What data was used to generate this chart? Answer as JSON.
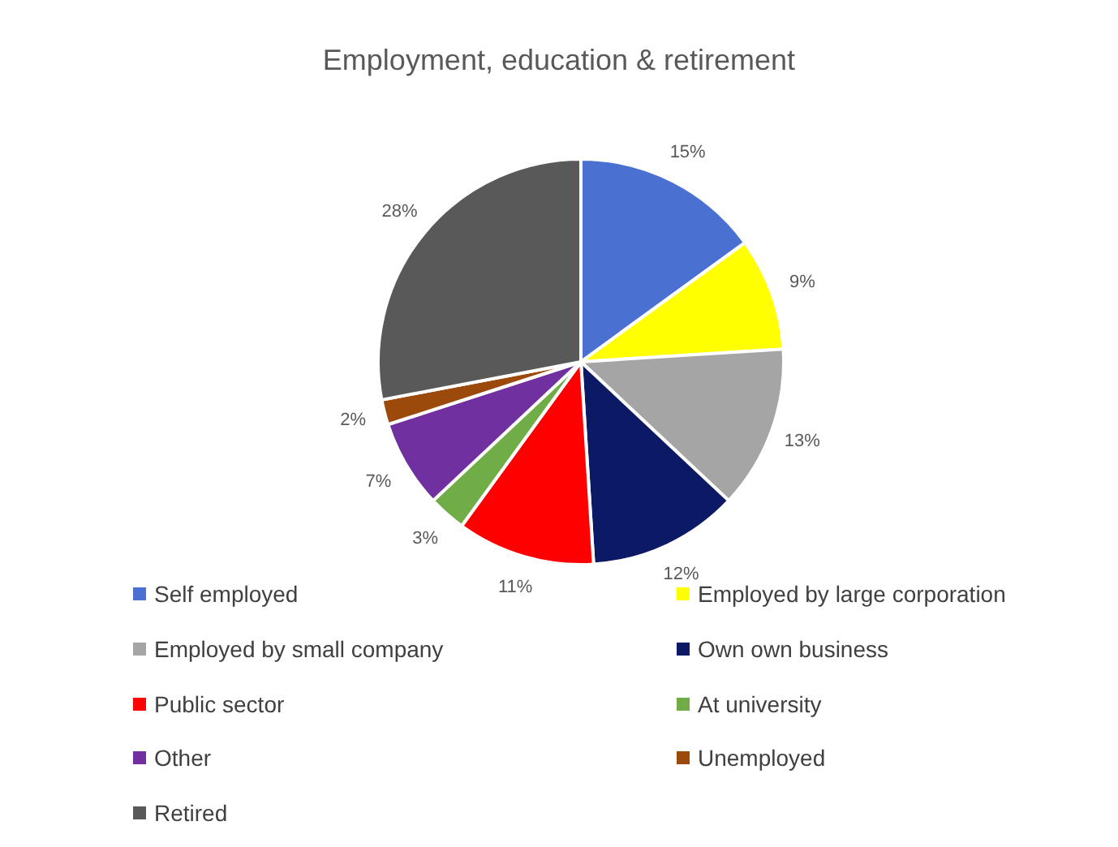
{
  "chart_data": {
    "type": "pie",
    "title": "Employment, education & retirement",
    "categories": [
      "Self employed",
      "Employed by large corporation",
      "Employed by small company",
      "Own own business",
      "Public sector",
      "At university",
      "Other",
      "Unemployed",
      "Retired"
    ],
    "values": [
      15,
      9,
      13,
      12,
      11,
      3,
      7,
      2,
      28
    ],
    "value_labels": [
      "15%",
      "9%",
      "13%",
      "12%",
      "11%",
      "3%",
      "7%",
      "2%",
      "28%"
    ],
    "colors": [
      "#4a70d2",
      "#ffff00",
      "#a5a5a5",
      "#0c1a66",
      "#ff0000",
      "#70ad47",
      "#7030a0",
      "#9c4a0c",
      "#595959"
    ],
    "legend": "bottom"
  }
}
